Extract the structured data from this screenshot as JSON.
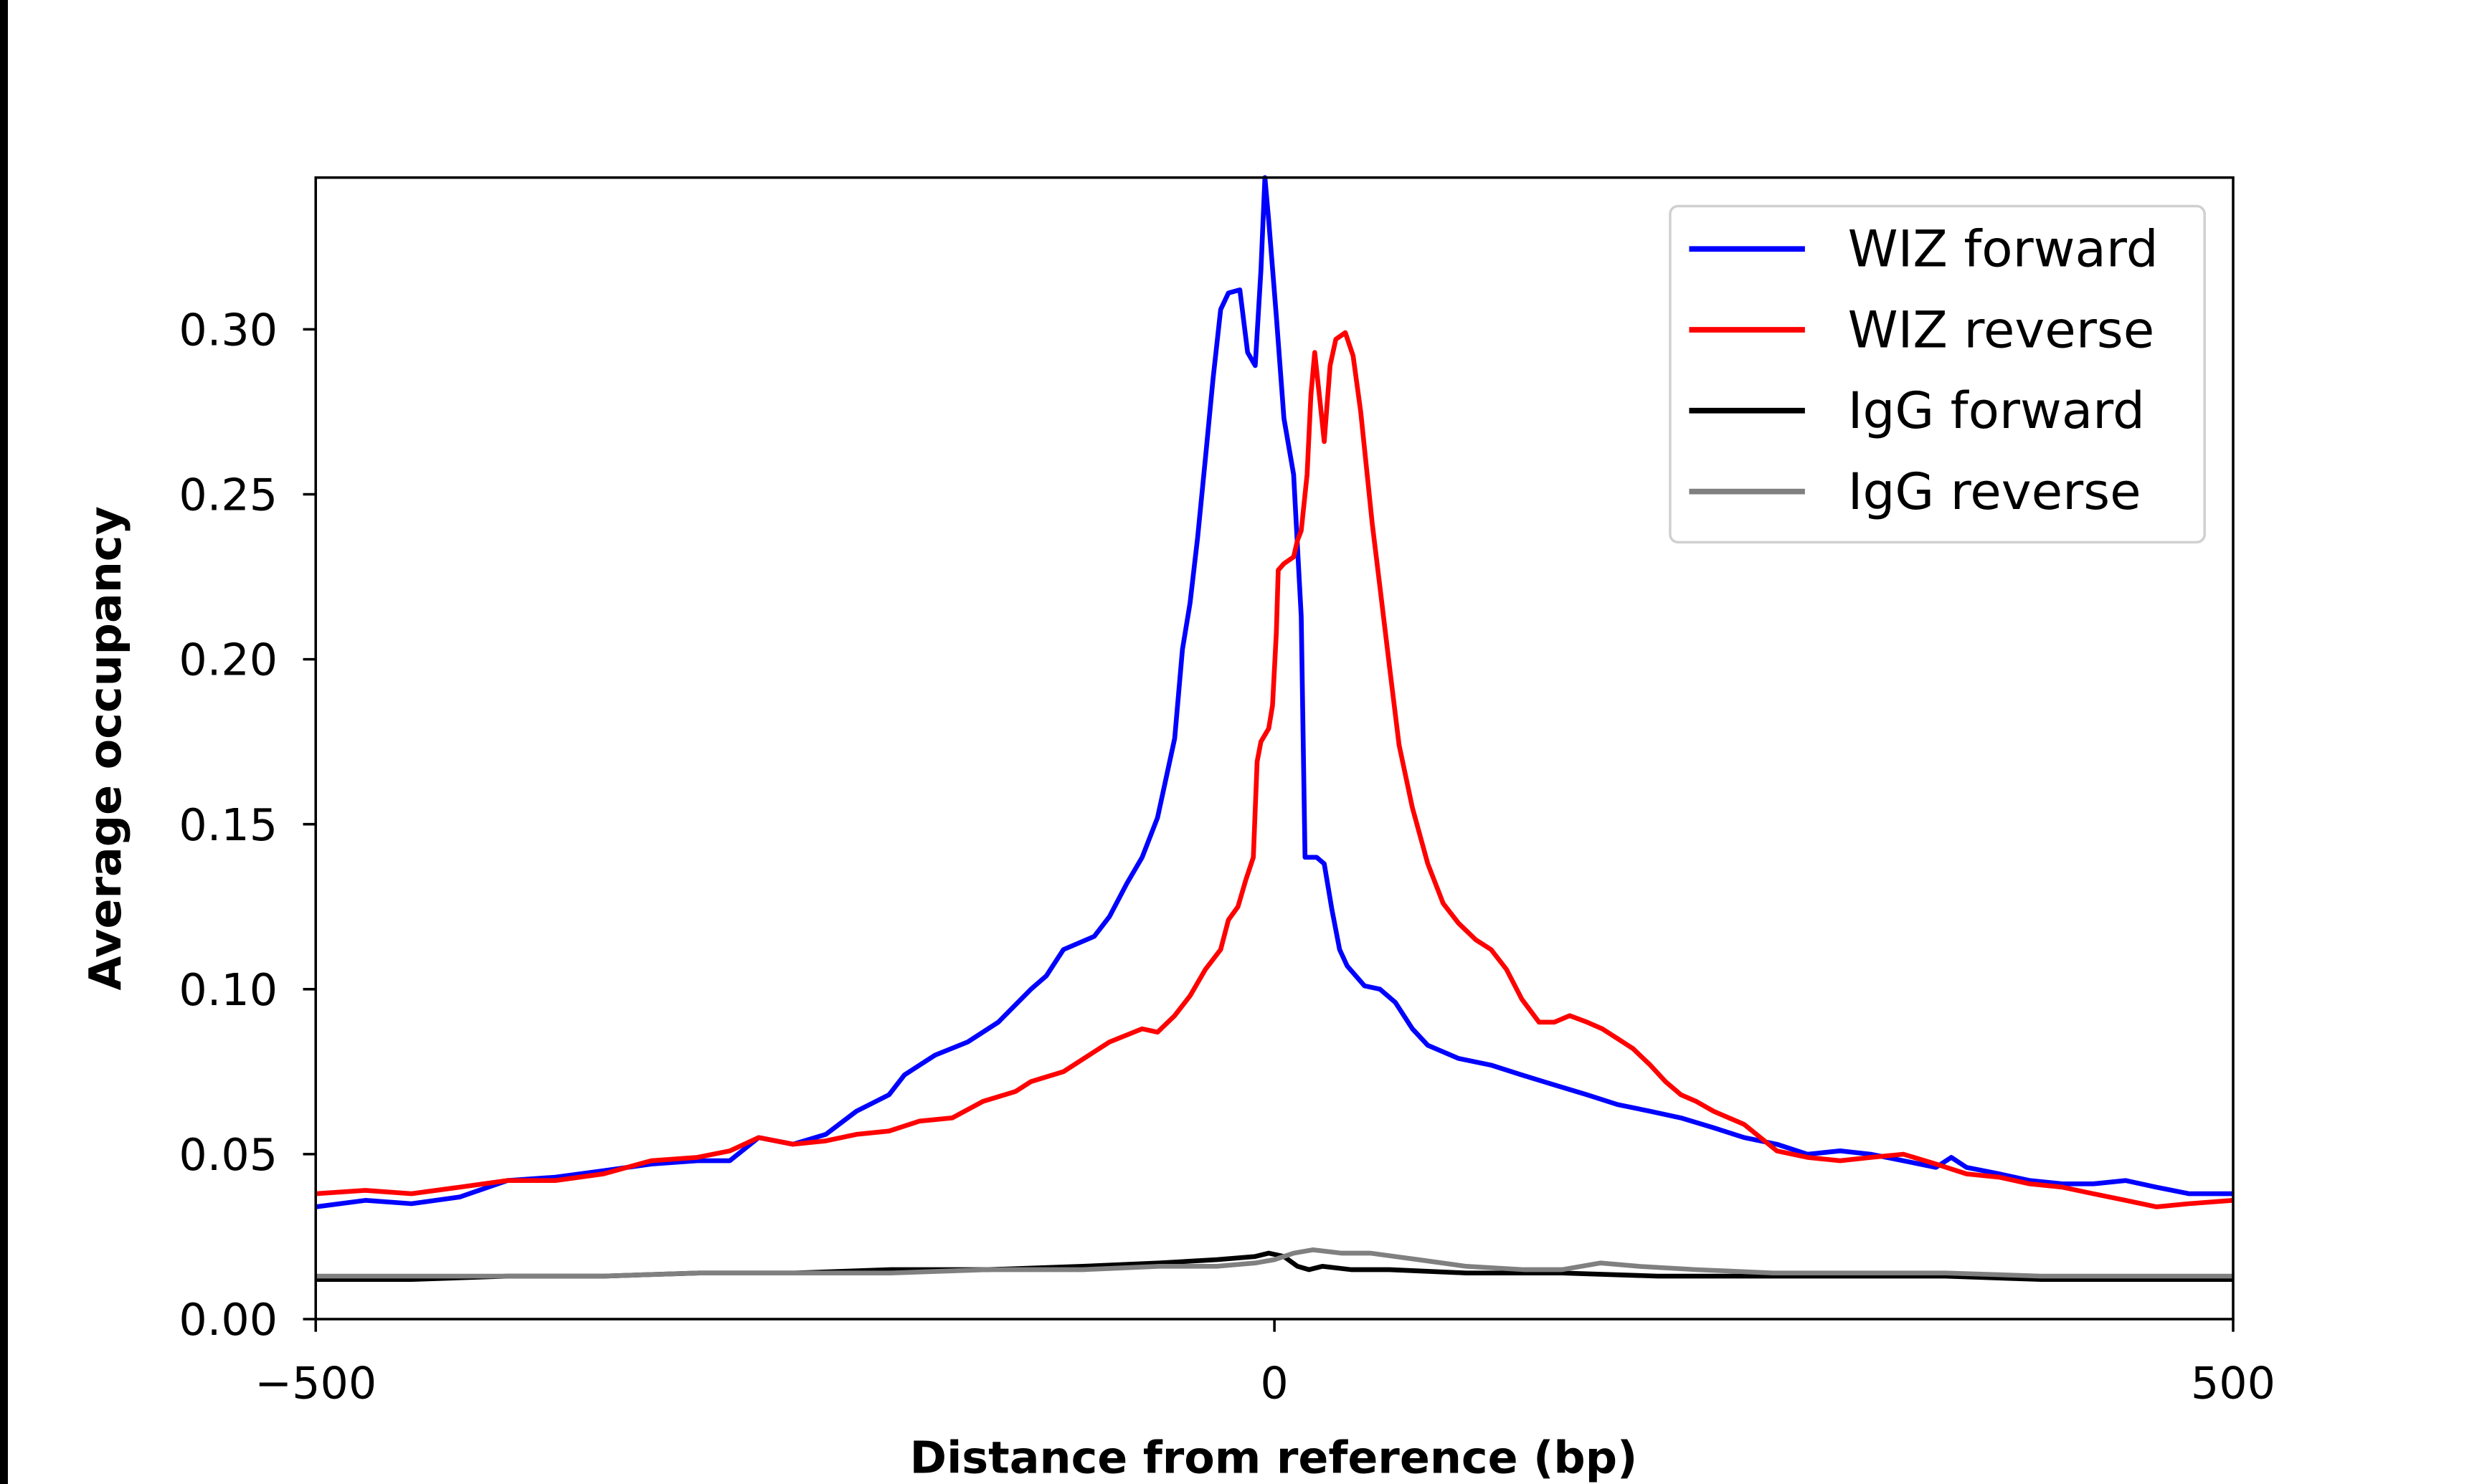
{
  "chart_data": {
    "type": "line",
    "title": "",
    "xlabel": "Distance from reference (bp)",
    "ylabel": "Average occupancy",
    "xlim": [
      -500,
      500
    ],
    "ylim": [
      0,
      0.346
    ],
    "xticks": [
      -500,
      0,
      500
    ],
    "xtick_labels": [
      "−500",
      "0",
      "500"
    ],
    "yticks": [
      0,
      0.05,
      0.1,
      0.15,
      0.2,
      0.25,
      0.3
    ],
    "ytick_labels": [
      "0.00",
      "0.05",
      "0.10",
      "0.15",
      "0.20",
      "0.25",
      "0.30"
    ],
    "grid": false,
    "legend_position": "top-right",
    "series": [
      {
        "name": "WIZ forward",
        "color": "#0000ff",
        "x": [
          -500,
          -474,
          -450,
          -425,
          -400,
          -375,
          -350,
          -325,
          -301,
          -284,
          -269,
          -251,
          -234,
          -218,
          -201,
          -193,
          -177,
          -160,
          -144,
          -127,
          -119,
          -110,
          -94,
          -86,
          -77,
          -69,
          -61,
          -52,
          -48,
          -44,
          -40,
          -36,
          -32,
          -28,
          -24,
          -18,
          -14,
          -10,
          -7,
          -5,
          -3,
          1,
          5,
          10,
          14,
          16,
          22,
          26,
          30,
          34,
          38,
          47,
          55,
          63,
          72,
          80,
          96,
          113,
          129,
          146,
          163,
          179,
          196,
          212,
          229,
          245,
          262,
          278,
          295,
          311,
          328,
          345,
          353,
          361,
          378,
          394,
          411,
          427,
          444,
          460,
          477,
          500
        ],
        "y": [
          0.034,
          0.036,
          0.035,
          0.037,
          0.042,
          0.043,
          0.045,
          0.047,
          0.048,
          0.048,
          0.055,
          0.053,
          0.056,
          0.063,
          0.068,
          0.074,
          0.08,
          0.084,
          0.09,
          0.1,
          0.104,
          0.112,
          0.116,
          0.122,
          0.132,
          0.14,
          0.152,
          0.176,
          0.203,
          0.217,
          0.237,
          0.261,
          0.285,
          0.306,
          0.311,
          0.312,
          0.293,
          0.289,
          0.318,
          0.346,
          0.333,
          0.304,
          0.273,
          0.256,
          0.213,
          0.14,
          0.14,
          0.138,
          0.124,
          0.112,
          0.107,
          0.101,
          0.1,
          0.096,
          0.088,
          0.083,
          0.079,
          0.077,
          0.074,
          0.071,
          0.068,
          0.065,
          0.063,
          0.061,
          0.058,
          0.055,
          0.053,
          0.05,
          0.051,
          0.05,
          0.048,
          0.046,
          0.049,
          0.046,
          0.044,
          0.042,
          0.041,
          0.041,
          0.042,
          0.04,
          0.038,
          0.038
        ]
      },
      {
        "name": "WIZ reverse",
        "color": "#ff0000",
        "x": [
          -500,
          -474,
          -450,
          -425,
          -400,
          -375,
          -350,
          -325,
          -301,
          -284,
          -269,
          -251,
          -234,
          -218,
          -201,
          -185,
          -168,
          -152,
          -135,
          -127,
          -110,
          -94,
          -86,
          -69,
          -61,
          -52,
          -44,
          -36,
          -28,
          -24,
          -19,
          -15,
          -11,
          -9,
          -7,
          -3,
          -1,
          1,
          2,
          5,
          10,
          12,
          14,
          17,
          19,
          21,
          24,
          26,
          29,
          32,
          37,
          41,
          45,
          51,
          55,
          60,
          65,
          72,
          80,
          88,
          96,
          105,
          113,
          121,
          129,
          138,
          146,
          154,
          163,
          171,
          179,
          187,
          196,
          204,
          212,
          220,
          229,
          245,
          262,
          278,
          295,
          311,
          328,
          345,
          361,
          378,
          394,
          411,
          427,
          444,
          460,
          477,
          500
        ],
        "y": [
          0.038,
          0.039,
          0.038,
          0.04,
          0.042,
          0.042,
          0.044,
          0.048,
          0.049,
          0.051,
          0.055,
          0.053,
          0.054,
          0.056,
          0.057,
          0.06,
          0.061,
          0.066,
          0.069,
          0.072,
          0.075,
          0.081,
          0.084,
          0.088,
          0.087,
          0.092,
          0.098,
          0.106,
          0.112,
          0.121,
          0.125,
          0.133,
          0.14,
          0.169,
          0.175,
          0.179,
          0.186,
          0.208,
          0.227,
          0.229,
          0.231,
          0.236,
          0.239,
          0.256,
          0.28,
          0.293,
          0.277,
          0.266,
          0.289,
          0.297,
          0.299,
          0.292,
          0.275,
          0.241,
          0.222,
          0.198,
          0.174,
          0.155,
          0.138,
          0.126,
          0.12,
          0.115,
          0.112,
          0.106,
          0.097,
          0.09,
          0.09,
          0.092,
          0.09,
          0.088,
          0.085,
          0.082,
          0.077,
          0.072,
          0.068,
          0.066,
          0.063,
          0.059,
          0.051,
          0.049,
          0.048,
          0.049,
          0.05,
          0.047,
          0.044,
          0.043,
          0.041,
          0.04,
          0.038,
          0.036,
          0.034,
          0.035,
          0.036
        ]
      },
      {
        "name": "IgG forward",
        "color": "#000000",
        "x": [
          -500,
          -450,
          -400,
          -350,
          -300,
          -250,
          -200,
          -150,
          -100,
          -60,
          -30,
          -10,
          -3,
          5,
          12,
          18,
          25,
          40,
          60,
          100,
          150,
          200,
          250,
          300,
          350,
          400,
          450,
          500
        ],
        "y": [
          0.012,
          0.012,
          0.013,
          0.013,
          0.014,
          0.014,
          0.015,
          0.015,
          0.016,
          0.017,
          0.018,
          0.019,
          0.02,
          0.019,
          0.016,
          0.015,
          0.016,
          0.015,
          0.015,
          0.014,
          0.014,
          0.013,
          0.013,
          0.013,
          0.013,
          0.012,
          0.012,
          0.012
        ]
      },
      {
        "name": "IgG reverse",
        "color": "#808080",
        "x": [
          -500,
          -450,
          -400,
          -350,
          -300,
          -250,
          -200,
          -150,
          -100,
          -60,
          -30,
          -10,
          0,
          10,
          20,
          35,
          50,
          75,
          100,
          130,
          150,
          170,
          190,
          220,
          260,
          300,
          350,
          400,
          450,
          500
        ],
        "y": [
          0.013,
          0.013,
          0.013,
          0.013,
          0.014,
          0.014,
          0.014,
          0.015,
          0.015,
          0.016,
          0.016,
          0.017,
          0.018,
          0.02,
          0.021,
          0.02,
          0.02,
          0.018,
          0.016,
          0.015,
          0.015,
          0.017,
          0.016,
          0.015,
          0.014,
          0.014,
          0.014,
          0.013,
          0.013,
          0.013
        ]
      }
    ]
  }
}
